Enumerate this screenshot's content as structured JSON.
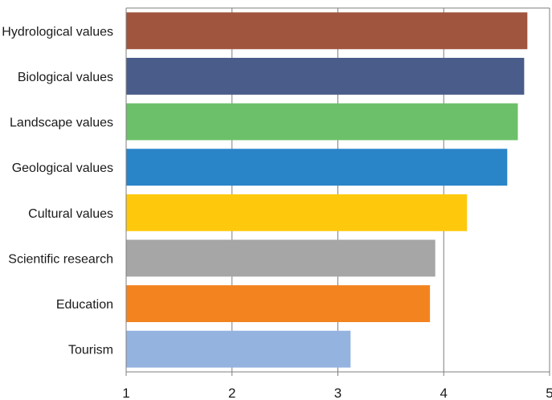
{
  "chart_data": {
    "type": "bar",
    "orientation": "horizontal",
    "categories": [
      "Hydrological values",
      "Biological values",
      "Landscape values",
      "Geological values",
      "Cultural values",
      "Scientific research",
      "Education",
      "Tourism"
    ],
    "values": [
      4.79,
      4.76,
      4.7,
      4.6,
      4.22,
      3.92,
      3.87,
      3.12
    ],
    "colors": [
      "#a0553f",
      "#4a5c8a",
      "#6cc06a",
      "#2a84c8",
      "#fec90d",
      "#a6a6a6",
      "#f3831f",
      "#94b3df"
    ],
    "xlim": [
      1,
      5
    ],
    "xticks": [
      "1",
      "2",
      "3",
      "4",
      "5"
    ],
    "grid": "vertical",
    "legend": "none",
    "title": "",
    "xlabel": "",
    "ylabel": ""
  }
}
